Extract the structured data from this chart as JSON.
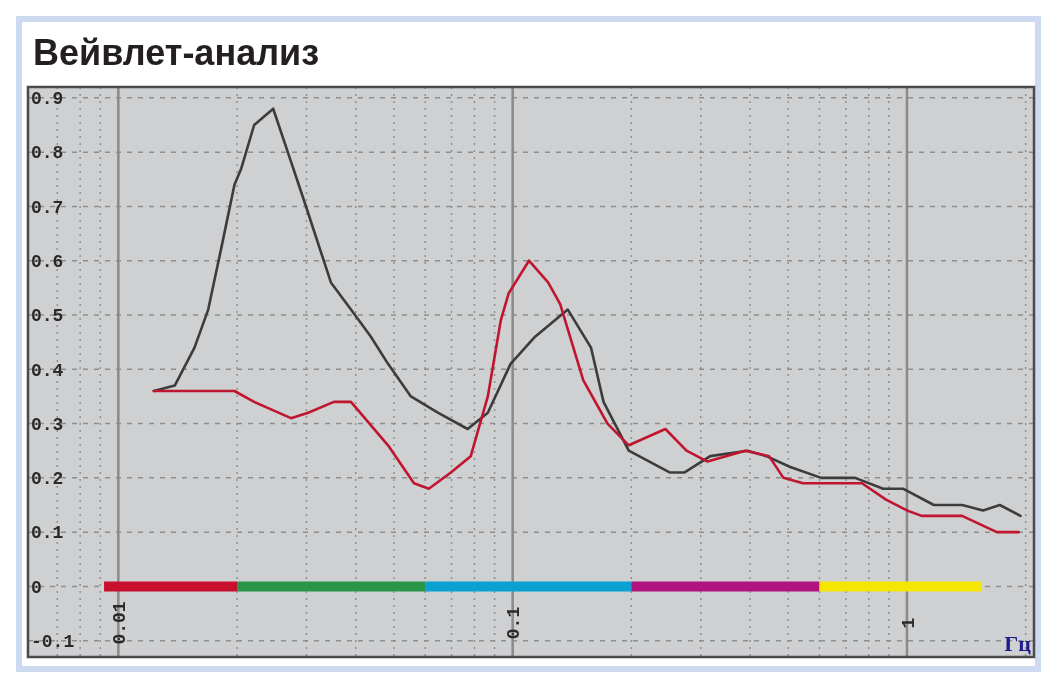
{
  "chart_data": {
    "type": "line",
    "title": "Вейвлет-анализ",
    "xlabel": "Гц",
    "log": "x",
    "xlim": [
      0.0059,
      2.1
    ],
    "ylim": [
      -0.13,
      0.92
    ],
    "xticks": [
      {
        "value": 0.007,
        "label": null
      },
      {
        "value": 0.008,
        "label": null
      },
      {
        "value": 0.009,
        "label": null
      },
      0.01,
      {
        "value": 0.02,
        "label": null
      },
      {
        "value": 0.03,
        "label": null
      },
      {
        "value": 0.04,
        "label": null
      },
      {
        "value": 0.05,
        "label": null
      },
      {
        "value": 0.06,
        "label": null
      },
      {
        "value": 0.07,
        "label": null
      },
      {
        "value": 0.08,
        "label": null
      },
      {
        "value": 0.09,
        "label": null
      },
      0.1,
      {
        "value": 0.2,
        "label": null
      },
      {
        "value": 0.3,
        "label": null
      },
      {
        "value": 0.4,
        "label": null
      },
      {
        "value": 0.5,
        "label": null
      },
      {
        "value": 0.6,
        "label": null
      },
      {
        "value": 0.7,
        "label": null
      },
      {
        "value": 0.8,
        "label": null
      },
      {
        "value": 0.9,
        "label": null
      },
      1,
      {
        "value": 2,
        "label": null
      }
    ],
    "yticks": [
      -0.1,
      0,
      0.1,
      0.2,
      0.3,
      0.4,
      0.5,
      0.6,
      0.7,
      0.8,
      0.9
    ],
    "grid": true,
    "series": [
      {
        "color": "#c8102e",
        "x": [
          0.0092,
          0.02
        ],
        "values": [
          0,
          0
        ]
      },
      {
        "color": "#2a9448",
        "x": [
          0.02,
          0.06
        ],
        "values": [
          0,
          0
        ]
      },
      {
        "color": "#0aa0d0",
        "x": [
          0.06,
          0.2
        ],
        "values": [
          0,
          0
        ]
      },
      {
        "color": "#b0127e",
        "x": [
          0.2,
          0.6
        ],
        "values": [
          0,
          0
        ]
      },
      {
        "color": "#f5e600",
        "x": [
          0.6,
          1.55
        ],
        "values": [
          0,
          0
        ]
      },
      {
        "color": "#3c3c3c",
        "x": [
          0.0123,
          0.0139,
          0.0156,
          0.0169,
          0.0182,
          0.0197,
          0.0205,
          0.0221,
          0.0247,
          0.0269,
          0.0296,
          0.0346,
          0.0389,
          0.0437,
          0.0483,
          0.0552,
          0.0646,
          0.0769,
          0.0865,
          0.0988,
          0.114,
          0.138,
          0.158,
          0.17,
          0.197,
          0.25,
          0.273,
          0.317,
          0.394,
          0.44,
          0.506,
          0.606,
          0.739,
          0.87,
          0.977,
          1.17,
          1.38,
          1.56,
          1.72,
          1.94
        ],
        "values": [
          0.36,
          0.37,
          0.44,
          0.51,
          0.62,
          0.74,
          0.77,
          0.85,
          0.88,
          0.8,
          0.71,
          0.56,
          0.51,
          0.46,
          0.41,
          0.35,
          0.32,
          0.29,
          0.32,
          0.41,
          0.46,
          0.51,
          0.44,
          0.34,
          0.25,
          0.21,
          0.21,
          0.24,
          0.25,
          0.24,
          0.22,
          0.2,
          0.2,
          0.18,
          0.18,
          0.15,
          0.15,
          0.14,
          0.15,
          0.13
        ]
      },
      {
        "color": "#c0152f",
        "x": [
          0.0123,
          0.0144,
          0.0156,
          0.0197,
          0.0221,
          0.0274,
          0.0303,
          0.0352,
          0.0389,
          0.0483,
          0.0562,
          0.0613,
          0.0697,
          0.0783,
          0.0865,
          0.0933,
          0.0977,
          0.11,
          0.123,
          0.132,
          0.151,
          0.174,
          0.197,
          0.244,
          0.276,
          0.312,
          0.389,
          0.447,
          0.486,
          0.545,
          0.769,
          0.885,
          1.0,
          1.09,
          1.38,
          1.69,
          1.92
        ],
        "values": [
          0.36,
          0.36,
          0.36,
          0.36,
          0.34,
          0.31,
          0.32,
          0.34,
          0.34,
          0.26,
          0.19,
          0.18,
          0.21,
          0.24,
          0.35,
          0.49,
          0.54,
          0.6,
          0.56,
          0.52,
          0.38,
          0.3,
          0.26,
          0.29,
          0.25,
          0.23,
          0.25,
          0.24,
          0.2,
          0.19,
          0.19,
          0.16,
          0.14,
          0.13,
          0.13,
          0.1,
          0.1
        ]
      }
    ]
  }
}
